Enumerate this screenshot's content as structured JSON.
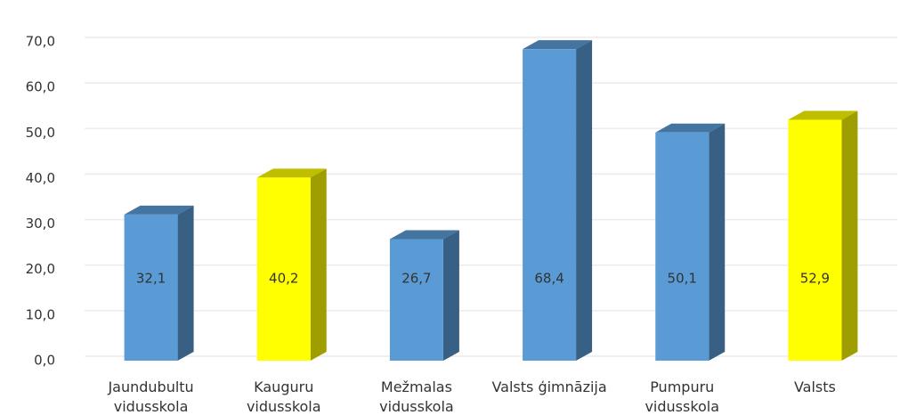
{
  "chart_data": {
    "type": "bar3d",
    "categories": [
      "Jaundubultu vidusskola",
      "Kauguru vidusskola",
      "Mežmalas vidusskola",
      "Valsts ģimnāzija",
      "Pumpuru vidusskola",
      "Valsts"
    ],
    "values": [
      32.1,
      40.2,
      26.7,
      68.4,
      50.1,
      52.9
    ],
    "value_labels": [
      "32,1",
      "40,2",
      "26,7",
      "68,4",
      "50,1",
      "52,9"
    ],
    "colors": [
      "#5b9bd5",
      "#ffff00",
      "#5b9bd5",
      "#5b9bd5",
      "#5b9bd5",
      "#ffff00"
    ],
    "ylim": [
      0,
      70
    ],
    "yticks": [
      {
        "value": 0,
        "label": "0,0"
      },
      {
        "value": 10,
        "label": "10,0"
      },
      {
        "value": 20,
        "label": "20,0"
      },
      {
        "value": 30,
        "label": "30,0"
      },
      {
        "value": 40,
        "label": "40,0"
      },
      {
        "value": 50,
        "label": "50,0"
      },
      {
        "value": 60,
        "label": "60,0"
      },
      {
        "value": 70,
        "label": "70,0"
      }
    ],
    "grid": true
  }
}
